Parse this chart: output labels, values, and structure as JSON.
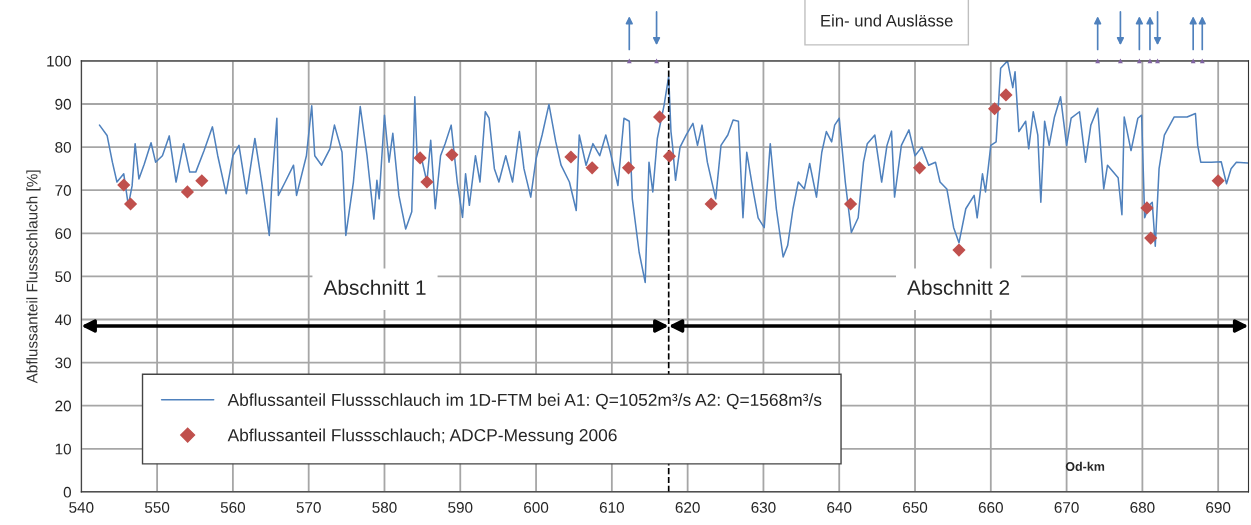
{
  "chart_data": {
    "type": "line",
    "xlabel": "Od-km",
    "ylabel": "Abflussanteil Flussschlauch [%]",
    "xlim": [
      540,
      694
    ],
    "xticks": [
      540,
      550,
      560,
      570,
      580,
      590,
      600,
      610,
      620,
      630,
      640,
      650,
      660,
      670,
      680,
      690
    ],
    "ylim": [
      0,
      100
    ],
    "yticks": [
      0,
      10,
      20,
      30,
      40,
      50,
      60,
      70,
      80,
      90,
      100
    ],
    "grid": true,
    "legend": "bottom left",
    "annotations": [
      "Ein- und Auslässe",
      "Abschnitt 1",
      "Abschnitt 2"
    ],
    "ref_lines": [
      {
        "axis": "x",
        "value": 617.5,
        "color": "#000000",
        "line_style": "dashed"
      }
    ],
    "series": [
      {
        "name": "Abflussanteil Flussschlauch im 1D-FTM bei A1: Q=1052m³/s A2: Q=1568m³/s",
        "marker": "none",
        "color": "#4f81bd",
        "x": [
          542.4,
          543.4,
          544.1,
          544.7,
          545.6,
          546.2,
          546.7,
          547.1,
          547.6,
          548.3,
          549.2,
          549.8,
          550.7,
          551.6,
          552.5,
          553.5,
          554.3,
          555.1,
          556.2,
          557.3,
          558,
          559.1,
          560,
          560.8,
          561.8,
          562.9,
          563.8,
          564.8,
          565.1,
          565.8,
          566,
          566.9,
          568,
          568.4,
          569.7,
          570.4,
          570.8,
          571.7,
          572.8,
          573.4,
          574.4,
          574.9,
          575.9,
          576.8,
          577.7,
          578.6,
          579,
          579.3,
          580,
          580.6,
          581.1,
          581.9,
          582.8,
          583.6,
          584,
          584.3,
          584.9,
          585.6,
          586.1,
          586.7,
          587.4,
          588,
          588.8,
          589.6,
          590.3,
          590.7,
          591.2,
          592,
          592.6,
          593.3,
          593.8,
          594.5,
          595.1,
          596,
          596.9,
          597.8,
          598.4,
          599.3,
          600,
          600.8,
          601.7,
          602.6,
          603.3,
          604.4,
          605.3,
          605.7,
          606.6,
          607.5,
          608.4,
          609.2,
          609.8,
          610.8,
          611.6,
          612.3,
          612.7,
          613.6,
          614.4,
          614.9,
          615.4,
          616,
          616.9,
          617.5,
          617.8,
          618,
          618.4,
          619,
          619.8,
          620.7,
          621.3,
          621.9,
          622.6,
          623.7,
          624.4,
          625.3,
          626,
          626.7,
          627.3,
          627.8,
          628.6,
          629.3,
          630.1,
          630.9,
          631.7,
          632.6,
          633.2,
          633.9,
          634.6,
          635.4,
          636.1,
          637,
          637.7,
          638.3,
          639,
          639.4,
          640,
          640.8,
          641.6,
          642.5,
          643.2,
          643.7,
          644.7,
          645.6,
          646.3,
          646.9,
          647.3,
          648.2,
          649.2,
          650,
          650.9,
          651.8,
          652.7,
          653.3,
          654.2,
          655.1,
          655.8,
          656.7,
          657.8,
          658.2,
          658.9,
          659.3,
          660,
          660.7,
          661.3,
          662.2,
          662.9,
          663.2,
          663.7,
          664.6,
          665,
          665.6,
          666.2,
          666.6,
          667.1,
          667.7,
          668.4,
          669.2,
          670,
          670.6,
          671.7,
          672.5,
          673.2,
          674.1,
          674.9,
          675.4,
          676.8,
          677.3,
          677.6,
          678.5,
          679.4,
          679.9,
          680.3,
          680.9,
          681.3,
          681.7,
          682.2,
          682.9,
          684.2,
          685.9,
          687,
          687.3,
          687.7,
          689.1,
          690.4,
          691.1,
          691.7,
          692.4,
          693.9
        ],
        "values": [
          85.1,
          82.7,
          76.5,
          71.9,
          73.8,
          66.5,
          71,
          80.8,
          72.6,
          76,
          81,
          76.5,
          78,
          82.6,
          71.9,
          80.8,
          74.2,
          74.2,
          79.2,
          84.7,
          78,
          69.2,
          78,
          80.4,
          69.2,
          82,
          71.9,
          59.5,
          70.5,
          86.7,
          68.8,
          71.9,
          75.8,
          68.8,
          78,
          89.6,
          78,
          75.8,
          79.6,
          85.1,
          78.8,
          59.5,
          71.9,
          89.4,
          78,
          63.3,
          72.3,
          68,
          87.4,
          76.5,
          83.2,
          68.8,
          61,
          65,
          91.7,
          78,
          77.3,
          71.9,
          81.6,
          65.7,
          78,
          80.8,
          85.1,
          71.9,
          63.7,
          73.8,
          66.5,
          78,
          71.9,
          88.2,
          86.7,
          75,
          71.9,
          78,
          71.9,
          83.6,
          75,
          68.4,
          77.3,
          82.8,
          89.9,
          81.2,
          75.8,
          71.9,
          65.3,
          82.8,
          75.8,
          80.8,
          78,
          82.8,
          78.8,
          71.1,
          86.7,
          86,
          68,
          55.6,
          48.6,
          76.5,
          69.6,
          82,
          89.8,
          96.4,
          83.6,
          80.4,
          72.3,
          80,
          82.8,
          85.5,
          80.4,
          85.1,
          76.5,
          68,
          80.4,
          82.8,
          86.3,
          86,
          63.6,
          78.8,
          70.3,
          63.6,
          61.3,
          80.8,
          65.7,
          54.5,
          57.2,
          65.7,
          71.9,
          70.3,
          76.2,
          68.4,
          78.8,
          83.6,
          81.2,
          85.1,
          86.7,
          71.9,
          60.2,
          63.6,
          76.5,
          80.8,
          82.8,
          71.9,
          80.4,
          83.7,
          68.4,
          80.4,
          84,
          78,
          80,
          75.8,
          76.5,
          71.9,
          70.3,
          61.3,
          57.8,
          65.7,
          68.8,
          63.6,
          73.8,
          69.6,
          80.4,
          81.2,
          98.3,
          100,
          93.8,
          97.5,
          83.6,
          86,
          79.6,
          88.2,
          82.8,
          67.2,
          86,
          80.4,
          87,
          91.7,
          80.4,
          86.7,
          88.2,
          76.5,
          85.1,
          89,
          70.3,
          75.8,
          72.9,
          64.3,
          87,
          79.2,
          86.7,
          87.4,
          63.6,
          66.5,
          67.2,
          57,
          75,
          82.8,
          87,
          87,
          87.8,
          80.4,
          76.5,
          76.5,
          76.6,
          71.5,
          75,
          76.5,
          76.3
        ]
      },
      {
        "name": "Abflussanteil Flussschlauch; ADCP-Messung 2006",
        "type": "scatter",
        "marker": "diamond",
        "color": "#c0504d",
        "x": [
          545.6,
          546.5,
          554.0,
          555.9,
          584.7,
          585.6,
          588.9,
          604.6,
          607.4,
          612.2,
          616.3,
          617.6,
          623.1,
          641.5,
          650.6,
          655.8,
          660.5,
          662.0,
          680.6,
          681.1,
          690.0
        ],
        "values": [
          71.2,
          66.8,
          69.6,
          72.2,
          77.5,
          71.9,
          78.2,
          77.7,
          75.2,
          75.2,
          87,
          77.9,
          66.8,
          66.8,
          75.2,
          56.1,
          88.9,
          92.1,
          65.9,
          58.9,
          72.2
        ]
      },
      {
        "type": "scatter",
        "marker": "triangle",
        "color": "#8064a2",
        "x": [
          612.3,
          674.1,
          679.6,
          681.0,
          686.7,
          687.9
        ],
        "values": [
          100,
          100,
          100,
          100,
          100,
          100
        ]
      },
      {
        "type": "scatter",
        "marker": "triangle",
        "color": "#8064a2",
        "x": [
          615.9,
          677.1,
          682.0
        ],
        "values": [
          100,
          100,
          100
        ]
      }
    ]
  }
}
